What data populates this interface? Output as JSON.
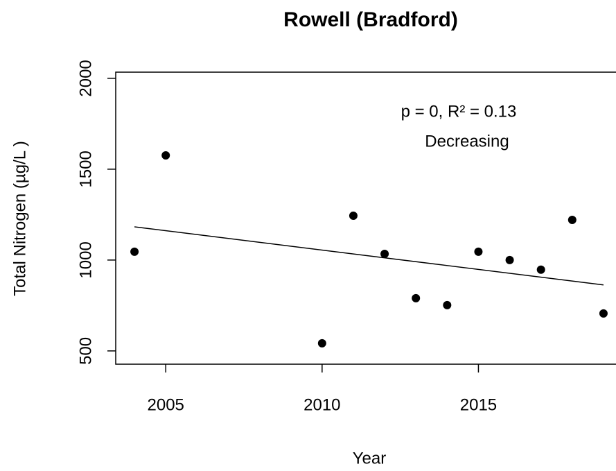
{
  "chart_data": {
    "type": "scatter",
    "title": "Rowell (Bradford)",
    "x_label": "Year",
    "y_label": "Total Nitrogen (µg/L )",
    "x": [
      2004,
      2005,
      2010,
      2011,
      2012,
      2013,
      2014,
      2015,
      2016,
      2017,
      2018,
      2019
    ],
    "values": [
      1046,
      1576,
      542,
      1244,
      1034,
      790,
      752,
      1046,
      1000,
      947,
      1221,
      706
    ],
    "color": "#000000",
    "trend_line": {
      "x": [
        2004,
        2019
      ],
      "values": [
        1183,
        863
      ],
      "color": "#000000"
    },
    "annotations": [
      "p = 0, R² = 0.13",
      "Decreasing"
    ],
    "xlim": [
      2003.4,
      2019.4
    ],
    "xticks": [
      2005,
      2010,
      2015
    ],
    "ylim": [
      427,
      2034
    ],
    "yticks": [
      500,
      1000,
      1500,
      2000
    ]
  }
}
